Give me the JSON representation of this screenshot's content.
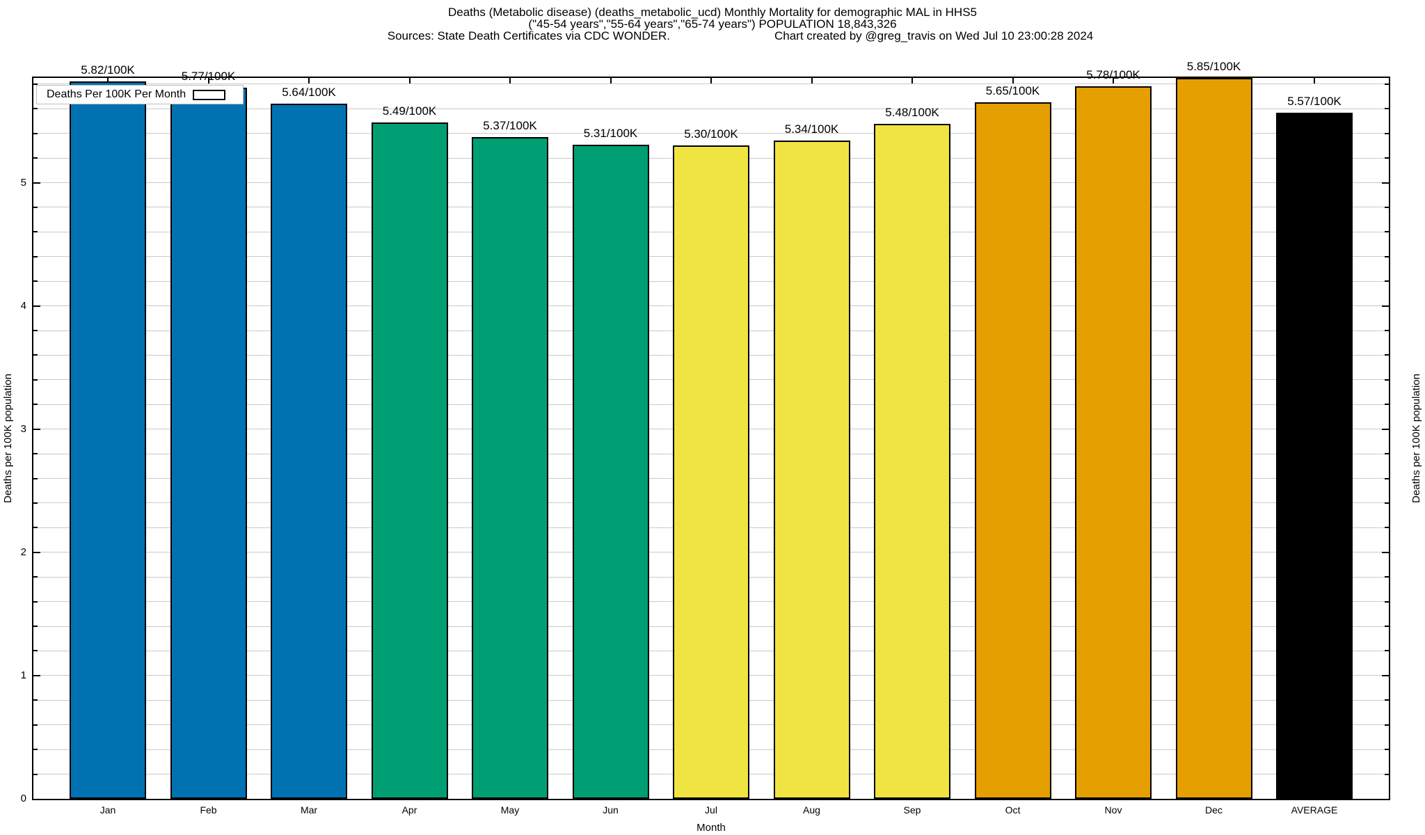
{
  "title": {
    "line1": "Deaths (Metabolic disease) (deaths_metabolic_ucd) Monthly Mortality for demographic MAL in HHS5",
    "line2": "(\"45-54 years\",\"55-64 years\",\"65-74 years\") POPULATION 18,843,326",
    "sources": "Sources: State Death Certificates via CDC WONDER.",
    "credit": "Chart created by @greg_travis on Wed Jul 10 23:00:28 2024"
  },
  "legend": {
    "label": "Deaths Per 100K Per Month",
    "color": "#0072B2"
  },
  "axes": {
    "xlabel": "Month",
    "ylabel_left": "Deaths per 100K population",
    "ylabel_right": "Deaths per 100K population",
    "y_major_ticks": [
      0,
      1,
      2,
      3,
      4,
      5
    ],
    "y_minor_step": 0.2,
    "ylim": [
      0,
      5.85
    ],
    "grid": "horizontal minor+major, light gray"
  },
  "chart_data": {
    "type": "bar",
    "title": "Deaths (Metabolic disease) (deaths_metabolic_ucd) Monthly Mortality for demographic MAL in HHS5 (\"45-54 years\",\"55-64 years\",\"65-74 years\") POPULATION 18,843,326",
    "xlabel": "Month",
    "ylabel": "Deaths per 100K population",
    "ylim": [
      0,
      5.85
    ],
    "categories": [
      "Jan",
      "Feb",
      "Mar",
      "Apr",
      "May",
      "Jun",
      "Jul",
      "Aug",
      "Sep",
      "Oct",
      "Nov",
      "Dec",
      "AVERAGE"
    ],
    "values": [
      5.82,
      5.77,
      5.64,
      5.49,
      5.37,
      5.31,
      5.3,
      5.34,
      5.48,
      5.65,
      5.78,
      5.85,
      5.57
    ],
    "bar_labels": [
      "5.82/100K",
      "5.77/100K",
      "5.64/100K",
      "5.49/100K",
      "5.37/100K",
      "5.31/100K",
      "5.30/100K",
      "5.34/100K",
      "5.48/100K",
      "5.65/100K",
      "5.78/100K",
      "5.85/100K",
      "5.57/100K"
    ],
    "bar_colors": [
      "#0072B2",
      "#0072B2",
      "#0072B2",
      "#009E73",
      "#009E73",
      "#009E73",
      "#F0E442",
      "#F0E442",
      "#F0E442",
      "#E69F00",
      "#E69F00",
      "#E69F00",
      "#000000"
    ],
    "series_color_legend": {
      "Jan-Mar": "#0072B2",
      "Apr-Jun": "#009E73",
      "Jul-Sep": "#F0E442",
      "Oct-Dec": "#E69F00",
      "AVERAGE": "#000000"
    },
    "legend_entries": [
      "Deaths Per 100K Per Month"
    ],
    "legend_position": "top-left"
  }
}
